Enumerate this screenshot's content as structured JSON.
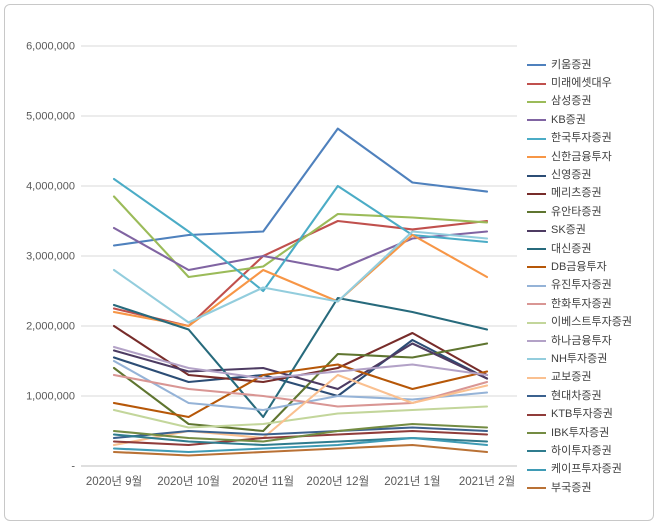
{
  "chart_data": {
    "type": "line",
    "title": "",
    "xlabel": "",
    "ylabel": "",
    "ylim": [
      0,
      6000000
    ],
    "grid": true,
    "legend_position": "right",
    "categories": [
      "2020년 9월",
      "2020년 10월",
      "2020년 11월",
      "2020년 12월",
      "2021년 1월",
      "2021년 2월"
    ],
    "yticks": [
      {
        "value": 0,
        "label": "-"
      },
      {
        "value": 1000000,
        "label": "1,000,000"
      },
      {
        "value": 2000000,
        "label": "2,000,000"
      },
      {
        "value": 3000000,
        "label": "3,000,000"
      },
      {
        "value": 4000000,
        "label": "4,000,000"
      },
      {
        "value": 5000000,
        "label": "5,000,000"
      },
      {
        "value": 6000000,
        "label": "6,000,000"
      }
    ],
    "series": [
      {
        "name": "키움증권",
        "color": "#4F81BD",
        "values": [
          3150000,
          3300000,
          3350000,
          4820000,
          4050000,
          3920000
        ]
      },
      {
        "name": "미래에셋대우",
        "color": "#C0504D",
        "values": [
          2250000,
          2000000,
          3000000,
          3500000,
          3380000,
          3500000
        ]
      },
      {
        "name": "삼성증권",
        "color": "#9BBB59",
        "values": [
          3850000,
          2700000,
          2850000,
          3600000,
          3550000,
          3480000
        ]
      },
      {
        "name": "KB증권",
        "color": "#8064A2",
        "values": [
          3400000,
          2800000,
          3000000,
          2800000,
          3250000,
          3350000
        ]
      },
      {
        "name": "한국투자증권",
        "color": "#4BACC6",
        "values": [
          4100000,
          3350000,
          2500000,
          4000000,
          3300000,
          3200000
        ]
      },
      {
        "name": "신한금융투자",
        "color": "#F79646",
        "values": [
          2200000,
          2000000,
          2800000,
          2350000,
          3300000,
          2700000
        ]
      },
      {
        "name": "신영증권",
        "color": "#2C4D75",
        "values": [
          1550000,
          1200000,
          1300000,
          1000000,
          1800000,
          1250000
        ]
      },
      {
        "name": "메리츠증권",
        "color": "#772C2A",
        "values": [
          2000000,
          1300000,
          1200000,
          1400000,
          1900000,
          1300000
        ]
      },
      {
        "name": "유안타증권",
        "color": "#5F7530",
        "values": [
          1400000,
          600000,
          500000,
          1600000,
          1550000,
          1750000
        ]
      },
      {
        "name": "SK증권",
        "color": "#4D3B62",
        "values": [
          1650000,
          1350000,
          1400000,
          1100000,
          1750000,
          1250000
        ]
      },
      {
        "name": "대신증권",
        "color": "#276A7C",
        "values": [
          2300000,
          1950000,
          700000,
          2400000,
          2200000,
          1950000
        ]
      },
      {
        "name": "DB금융투자",
        "color": "#B65708",
        "values": [
          900000,
          700000,
          1300000,
          1450000,
          1100000,
          1350000
        ]
      },
      {
        "name": "유진투자증권",
        "color": "#95B3D7",
        "values": [
          1500000,
          900000,
          800000,
          1000000,
          950000,
          1050000
        ]
      },
      {
        "name": "한화투자증권",
        "color": "#D99694",
        "values": [
          1300000,
          1100000,
          1000000,
          850000,
          900000,
          1200000
        ]
      },
      {
        "name": "이베스트투자증권",
        "color": "#C3D69B",
        "values": [
          800000,
          550000,
          600000,
          750000,
          800000,
          850000
        ]
      },
      {
        "name": "하나금융투자",
        "color": "#B3A2C7",
        "values": [
          1700000,
          1400000,
          1250000,
          1350000,
          1450000,
          1300000
        ]
      },
      {
        "name": "NH투자증권",
        "color": "#93CDDD",
        "values": [
          2800000,
          2050000,
          2550000,
          2350000,
          3350000,
          3250000
        ]
      },
      {
        "name": "교보증권",
        "color": "#FAC090",
        "values": [
          300000,
          500000,
          400000,
          1300000,
          900000,
          1150000
        ]
      },
      {
        "name": "현대차증권",
        "color": "#3B618E",
        "values": [
          400000,
          500000,
          450000,
          500000,
          550000,
          500000
        ]
      },
      {
        "name": "KTB투자증권",
        "color": "#903C3A",
        "values": [
          350000,
          300000,
          400000,
          450000,
          500000,
          450000
        ]
      },
      {
        "name": "IBK투자증권",
        "color": "#748C43",
        "values": [
          500000,
          400000,
          350000,
          500000,
          600000,
          550000
        ]
      },
      {
        "name": "하이투자증권",
        "color": "#2F7C8E",
        "values": [
          450000,
          350000,
          300000,
          350000,
          400000,
          350000
        ]
      },
      {
        "name": "케이프투자증권",
        "color": "#3F9BB5",
        "values": [
          250000,
          200000,
          250000,
          300000,
          400000,
          300000
        ]
      },
      {
        "name": "부국증권",
        "color": "#B97135",
        "values": [
          200000,
          150000,
          200000,
          250000,
          300000,
          200000
        ]
      }
    ],
    "axis_colors": {
      "grid": "#D9D9D9",
      "axis_line": "#BFBFBF",
      "tick_text": "#595959"
    }
  }
}
